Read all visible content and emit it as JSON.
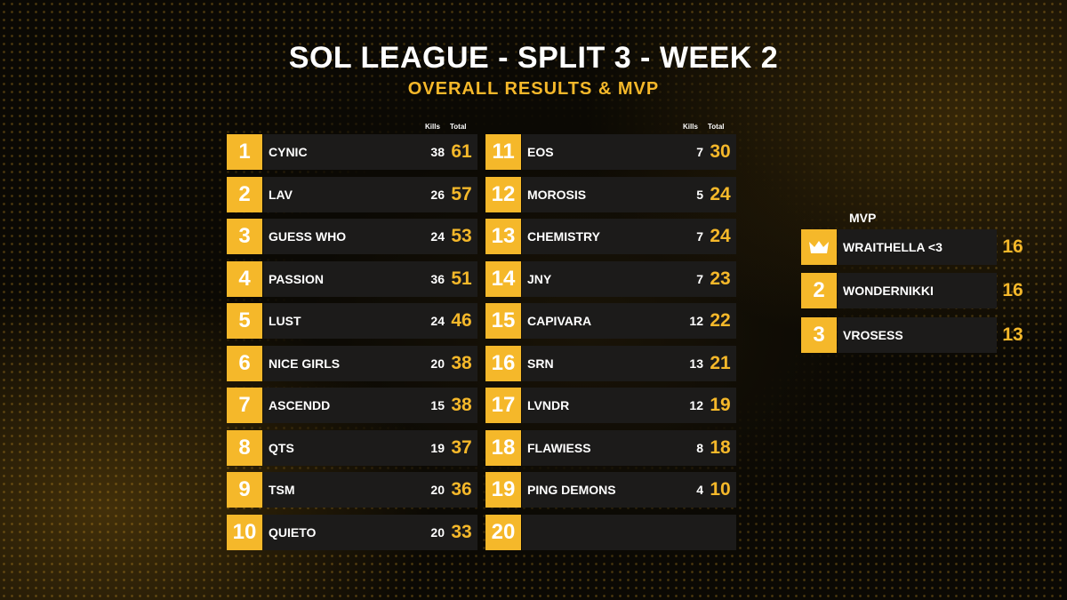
{
  "header": {
    "title": "SOL LEAGUE - SPLIT 3 - WEEK 2",
    "subtitle": "OVERALL RESULTS & MVP"
  },
  "columns": {
    "kills": "Kills",
    "total": "Total"
  },
  "standings": [
    {
      "rank": "1",
      "team": "CYNIC",
      "kills": "38",
      "total": "61"
    },
    {
      "rank": "2",
      "team": "LAV",
      "kills": "26",
      "total": "57"
    },
    {
      "rank": "3",
      "team": "GUESS WHO",
      "kills": "24",
      "total": "53"
    },
    {
      "rank": "4",
      "team": "PASSION",
      "kills": "36",
      "total": "51"
    },
    {
      "rank": "5",
      "team": "LUST",
      "kills": "24",
      "total": "46"
    },
    {
      "rank": "6",
      "team": "NICE GIRLS",
      "kills": "20",
      "total": "38"
    },
    {
      "rank": "7",
      "team": "ASCENDD",
      "kills": "15",
      "total": "38"
    },
    {
      "rank": "8",
      "team": "QTS",
      "kills": "19",
      "total": "37"
    },
    {
      "rank": "9",
      "team": "TSM",
      "kills": "20",
      "total": "36"
    },
    {
      "rank": "10",
      "team": "QUIETO",
      "kills": "20",
      "total": "33"
    },
    {
      "rank": "11",
      "team": "EOS",
      "kills": "7",
      "total": "30"
    },
    {
      "rank": "12",
      "team": "MOROSIS",
      "kills": "5",
      "total": "24"
    },
    {
      "rank": "13",
      "team": "CHEMISTRY",
      "kills": "7",
      "total": "24"
    },
    {
      "rank": "14",
      "team": "JNY",
      "kills": "7",
      "total": "23"
    },
    {
      "rank": "15",
      "team": "CAPIVARA",
      "kills": "12",
      "total": "22"
    },
    {
      "rank": "16",
      "team": "SRN",
      "kills": "13",
      "total": "21"
    },
    {
      "rank": "17",
      "team": "LVNDR",
      "kills": "12",
      "total": "19"
    },
    {
      "rank": "18",
      "team": "FLAWIESS",
      "kills": "8",
      "total": "18"
    },
    {
      "rank": "19",
      "team": "PING DEMONS",
      "kills": "4",
      "total": "10"
    },
    {
      "rank": "20",
      "team": "",
      "kills": "",
      "total": ""
    }
  ],
  "mvp": {
    "label": "MVP",
    "players": [
      {
        "rank_icon": "crown-icon",
        "name": "WRAITHELLA <3",
        "total": "16"
      },
      {
        "rank": "2",
        "name": "WONDERNIKKI",
        "total": "16"
      },
      {
        "rank": "3",
        "name": "VROSESS",
        "total": "13"
      }
    ]
  },
  "colors": {
    "accent": "#f5b82a",
    "row_bg": "#1c1b1a",
    "background": "#0b0904"
  }
}
